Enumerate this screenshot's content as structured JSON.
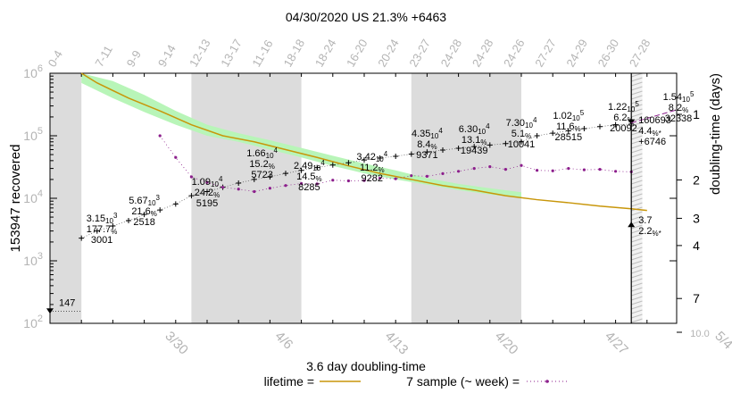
{
  "chart_data": {
    "type": "line",
    "title": "04/30/2020 US 21.3% +6463",
    "ylabel_left": "153947 recovered",
    "ylabel_right": "doubling-time (days)",
    "yscale": "log",
    "ylim": [
      100,
      1000000
    ],
    "x_range": [
      0,
      53
    ],
    "y_tick_labels": [
      {
        "base": "10",
        "exp": "2",
        "value": 100
      },
      {
        "base": "10",
        "exp": "3",
        "value": 1000
      },
      {
        "base": "10",
        "exp": "4",
        "value": 10000
      },
      {
        "base": "10",
        "exp": "5",
        "value": 100000
      },
      {
        "base": "10",
        "exp": "6",
        "value": 1000000
      }
    ],
    "y2_ticks": [
      {
        "label": "1",
        "value": 1
      },
      {
        "label": "2",
        "value": 2
      },
      {
        "label": "3",
        "value": 3
      },
      {
        "label": "4",
        "value": 4
      },
      {
        "label": "7",
        "value": 7
      },
      {
        "label": "10.0",
        "value": 10
      }
    ],
    "x_ticks": [
      {
        "label": "3/30",
        "x": 7
      },
      {
        "label": "4/6",
        "x": 14
      },
      {
        "label": "4/13",
        "x": 21
      },
      {
        "label": "4/20",
        "x": 28
      },
      {
        "label": "4/27",
        "x": 35
      },
      {
        "label": "5/4",
        "x": 42
      }
    ],
    "top_labels": [
      {
        "x": 0,
        "label": "0-4"
      },
      {
        "x": 3,
        "label": "7-11"
      },
      {
        "x": 5,
        "label": "9-9"
      },
      {
        "x": 7,
        "label": "9-14"
      },
      {
        "x": 9,
        "label": "12-13"
      },
      {
        "x": 11,
        "label": "13-17"
      },
      {
        "x": 13,
        "label": "11-16"
      },
      {
        "x": 15,
        "label": "18-18"
      },
      {
        "x": 17,
        "label": "18-24"
      },
      {
        "x": 19,
        "label": "16-20"
      },
      {
        "x": 21,
        "label": "20-24"
      },
      {
        "x": 23,
        "label": "23-27"
      },
      {
        "x": 25,
        "label": "24-28"
      },
      {
        "x": 27,
        "label": "24-28"
      },
      {
        "x": 29,
        "label": "24-26"
      },
      {
        "x": 31,
        "label": "27-27"
      },
      {
        "x": 33,
        "label": "24-29"
      },
      {
        "x": 35,
        "label": "26-30"
      },
      {
        "x": 37,
        "label": "27-28"
      }
    ],
    "shaded_bands": [
      [
        0,
        2
      ],
      [
        9,
        16
      ],
      [
        23,
        30
      ]
    ],
    "hatched_band": [
      37,
      37.7
    ],
    "cutoff_x": 37,
    "series": [
      {
        "name": "recovered",
        "style": "cross-markers",
        "points": [
          [
            2,
            2300
          ],
          [
            3,
            3001
          ],
          [
            4,
            3600
          ],
          [
            5,
            4400
          ],
          [
            6,
            5500
          ],
          [
            7,
            6500
          ],
          [
            8,
            8100
          ],
          [
            9,
            11000
          ],
          [
            10,
            12800
          ],
          [
            11,
            15000
          ],
          [
            12,
            17500
          ],
          [
            13,
            20000
          ],
          [
            14,
            22000
          ],
          [
            15,
            25000
          ],
          [
            16,
            28000
          ],
          [
            17,
            31000
          ],
          [
            18,
            34000
          ],
          [
            19,
            37000
          ],
          [
            20,
            41000
          ],
          [
            21,
            44000
          ],
          [
            22,
            47000
          ],
          [
            23,
            51000
          ],
          [
            24,
            55000
          ],
          [
            25,
            59000
          ],
          [
            26,
            63000
          ],
          [
            27,
            67000
          ],
          [
            28,
            71000
          ],
          [
            29,
            75000
          ],
          [
            30,
            80000
          ],
          [
            31,
            100000
          ],
          [
            32,
            110000
          ],
          [
            33,
            120000
          ],
          [
            34,
            130000
          ],
          [
            35,
            140000
          ],
          [
            36,
            150000
          ],
          [
            37,
            153947
          ]
        ]
      },
      {
        "name": "lifetime",
        "color": "#c8960a",
        "points": [
          [
            2,
            1000000
          ],
          [
            3,
            700000
          ],
          [
            5,
            400000
          ],
          [
            7,
            250000
          ],
          [
            9,
            150000
          ],
          [
            11,
            100000
          ],
          [
            13,
            80000
          ],
          [
            15,
            60000
          ],
          [
            17,
            45000
          ],
          [
            19,
            33000
          ],
          [
            21,
            25000
          ],
          [
            23,
            20000
          ],
          [
            25,
            16000
          ],
          [
            27,
            13500
          ],
          [
            29,
            11000
          ],
          [
            31,
            9500
          ],
          [
            33,
            8500
          ],
          [
            35,
            7500
          ],
          [
            37,
            6800
          ],
          [
            38,
            6400
          ],
          [
            40,
            5800
          ],
          [
            42,
            5200
          ],
          [
            44,
            4700
          ],
          [
            46,
            4200
          ],
          [
            48,
            3900
          ],
          [
            50,
            3600
          ],
          [
            52,
            3400
          ],
          [
            53,
            3250
          ]
        ]
      },
      {
        "name": "7 sample (~ week)",
        "color": "#8c1e8c",
        "points": [
          [
            7,
            100000
          ],
          [
            8,
            45000
          ],
          [
            9,
            22000
          ],
          [
            10,
            18000
          ],
          [
            11,
            15000
          ],
          [
            12,
            14000
          ],
          [
            13,
            12800
          ],
          [
            14,
            14500
          ],
          [
            15,
            16000
          ],
          [
            16,
            17200
          ],
          [
            17,
            17000
          ],
          [
            18,
            19500
          ],
          [
            19,
            19000
          ],
          [
            20,
            19200
          ],
          [
            21,
            21000
          ],
          [
            22,
            20500
          ],
          [
            23,
            23000
          ],
          [
            24,
            22500
          ],
          [
            25,
            24800
          ],
          [
            26,
            27000
          ],
          [
            27,
            30000
          ],
          [
            28,
            32000
          ],
          [
            29,
            29000
          ],
          [
            30,
            33500
          ],
          [
            31,
            28000
          ],
          [
            32,
            27500
          ],
          [
            33,
            30000
          ],
          [
            34,
            28500
          ],
          [
            35,
            29000
          ],
          [
            36,
            27000
          ],
          [
            37,
            26500
          ]
        ]
      }
    ],
    "green_band": [
      [
        2,
        1000000,
        700000
      ],
      [
        4,
        750000,
        400000
      ],
      [
        6,
        450000,
        240000
      ],
      [
        8,
        250000,
        150000
      ],
      [
        10,
        150000,
        100000
      ],
      [
        12,
        110000,
        80000
      ],
      [
        14,
        85000,
        60000
      ],
      [
        16,
        64000,
        45000
      ],
      [
        18,
        48000,
        33000
      ],
      [
        20,
        36000,
        25000
      ],
      [
        22,
        28000,
        20000
      ],
      [
        24,
        21000,
        16500
      ],
      [
        26,
        17000,
        13500
      ],
      [
        28,
        14500,
        11500
      ],
      [
        30,
        12500,
        10000
      ]
    ],
    "annotations": [
      {
        "x": 1,
        "value": "147"
      },
      {
        "x": 3.3,
        "lines": [
          {
            "base": "3.15",
            "exp": "10",
            "sup": "3"
          },
          {
            "text": "177.7",
            "sub": "%"
          },
          {
            "text": "3001"
          }
        ]
      },
      {
        "x": 6,
        "lines": [
          {
            "base": "5.67",
            "exp": "10",
            "sup": "3"
          },
          {
            "text": "21.6",
            "sub": "%"
          },
          {
            "text": "2518"
          }
        ]
      },
      {
        "x": 10,
        "lines": [
          {
            "base": "1.09",
            "exp": "10",
            "sup": "4"
          },
          {
            "text": "24.2",
            "sub": "%"
          },
          {
            "text": "5195"
          }
        ]
      },
      {
        "x": 13.5,
        "lines": [
          {
            "base": "1.66",
            "exp": "10",
            "sup": "4"
          },
          {
            "text": "15.2",
            "sub": "%"
          },
          {
            "text": "5723"
          }
        ]
      },
      {
        "x": 16.5,
        "lines": [
          {
            "base": "2.49",
            "exp": "10",
            "sup": "4"
          },
          {
            "text": "14.5",
            "sub": "%"
          },
          {
            "text": "8285"
          }
        ]
      },
      {
        "x": 20.5,
        "lines": [
          {
            "base": "3.42",
            "exp": "10",
            "sup": "4"
          },
          {
            "text": "11.2",
            "sub": "%"
          },
          {
            "text": "9282"
          }
        ]
      },
      {
        "x": 24,
        "lines": [
          {
            "base": "4.35",
            "exp": "10",
            "sup": "4"
          },
          {
            "text": "8.4",
            "sub": "%"
          },
          {
            "text": "9371"
          }
        ]
      },
      {
        "x": 27,
        "lines": [
          {
            "base": "6.30",
            "exp": "10",
            "sup": "4"
          },
          {
            "text": "13.1",
            "sub": "%"
          },
          {
            "text": "19439"
          }
        ]
      },
      {
        "x": 30,
        "lines": [
          {
            "base": "7.30",
            "exp": "10",
            "sup": "4"
          },
          {
            "text": "5.1",
            "sub": "%"
          },
          {
            "text": "10041"
          }
        ]
      },
      {
        "x": 33,
        "lines": [
          {
            "base": "1.02",
            "exp": "10",
            "sup": "5"
          },
          {
            "text": "11.6",
            "sub": "%"
          },
          {
            "text": "28515"
          }
        ]
      },
      {
        "x": 36.5,
        "lines": [
          {
            "base": "1.22",
            "exp": "10",
            "sup": "5"
          },
          {
            "text": "6.2",
            "sub": "%"
          },
          {
            "text": "20092"
          }
        ]
      },
      {
        "x": 40,
        "lines": [
          {
            "base": "1.54",
            "exp": "10",
            "sup": "5"
          },
          {
            "text": "8.2",
            "sub": "%"
          },
          {
            "text": "32338"
          }
        ]
      },
      {
        "x": 44.5,
        "lines": [
          {
            "text": "160693"
          },
          {
            "text": "4.4",
            "sub": "%*"
          },
          {
            "text": "+6746"
          }
        ]
      },
      {
        "x": 44.5,
        "lines": [
          {
            "text": "3.7"
          },
          {
            "text": "2.2",
            "sub": "%*"
          }
        ]
      }
    ]
  },
  "legend": {
    "heading": "3.6 day doubling-time",
    "lifetime_label": "lifetime =",
    "sample_label": "7 sample (~ week) ="
  }
}
